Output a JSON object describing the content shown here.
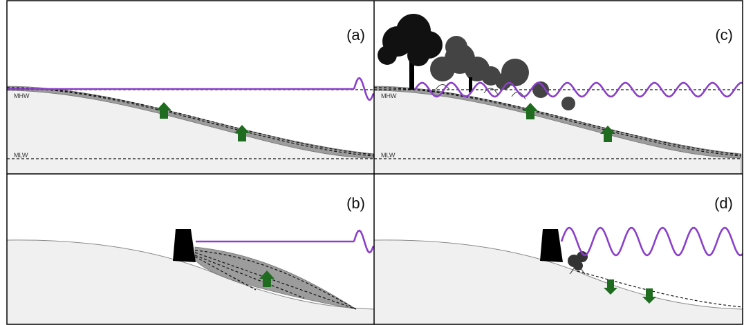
{
  "panels": [
    {
      "label": "(a)",
      "mhw": "MHW",
      "mlw": "MLW"
    },
    {
      "label": "(b)"
    },
    {
      "label": "(c)",
      "mhw": "MHW",
      "mlw": "MLW"
    },
    {
      "label": "(d)"
    }
  ]
}
